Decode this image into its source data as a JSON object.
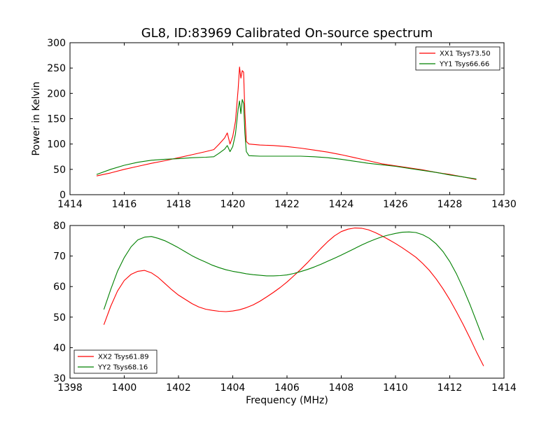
{
  "figure": {
    "title": "GL8, ID:83969 Calibrated On-source spectrum"
  },
  "chart_data": [
    {
      "type": "line",
      "title": "GL8, ID:83969 Calibrated On-source spectrum",
      "xlabel": "",
      "ylabel": "Power in Kelvin",
      "xlim": [
        1414,
        1430
      ],
      "ylim": [
        0,
        300
      ],
      "xticks": [
        1414,
        1416,
        1418,
        1420,
        1422,
        1424,
        1426,
        1428,
        1430
      ],
      "yticks": [
        0,
        50,
        100,
        150,
        200,
        250,
        300
      ],
      "grid": false,
      "legend_position": "top-right",
      "series": [
        {
          "name": "XX1 Tsys73.50",
          "color": "#ff0000",
          "x": [
            1414.98,
            1415.5,
            1416.0,
            1416.5,
            1417.0,
            1417.5,
            1418.0,
            1418.5,
            1419.0,
            1419.3,
            1419.5,
            1419.7,
            1419.8,
            1419.9,
            1420.0,
            1420.1,
            1420.2,
            1420.25,
            1420.3,
            1420.35,
            1420.4,
            1420.45,
            1420.5,
            1420.6,
            1421.0,
            1421.5,
            1422.0,
            1422.5,
            1423.0,
            1423.5,
            1424.0,
            1424.5,
            1425.0,
            1425.5,
            1426.0,
            1426.5,
            1427.0,
            1427.5,
            1428.0,
            1428.5,
            1428.98
          ],
          "y": [
            37,
            43,
            50,
            56,
            62,
            67,
            73,
            79,
            85,
            89,
            100,
            112,
            122,
            100,
            115,
            145,
            210,
            252,
            230,
            245,
            242,
            160,
            105,
            100,
            98,
            97,
            95,
            92,
            88,
            84,
            79,
            73,
            67,
            61,
            57,
            53,
            49,
            44,
            40,
            35,
            30
          ]
        },
        {
          "name": "YY1 Tsys66.66",
          "color": "#008000",
          "x": [
            1414.98,
            1415.5,
            1416.0,
            1416.5,
            1417.0,
            1417.5,
            1418.0,
            1418.5,
            1419.0,
            1419.3,
            1419.5,
            1419.7,
            1419.8,
            1419.9,
            1420.0,
            1420.1,
            1420.2,
            1420.25,
            1420.3,
            1420.35,
            1420.4,
            1420.45,
            1420.5,
            1420.6,
            1421.0,
            1421.5,
            1422.0,
            1422.5,
            1423.0,
            1423.5,
            1424.0,
            1424.5,
            1425.0,
            1425.5,
            1426.0,
            1426.5,
            1427.0,
            1427.5,
            1428.0,
            1428.5,
            1428.98
          ],
          "y": [
            40,
            50,
            58,
            64,
            68,
            70,
            71,
            73,
            74,
            75,
            82,
            90,
            97,
            85,
            95,
            120,
            170,
            185,
            160,
            188,
            180,
            120,
            85,
            77,
            76,
            76,
            76,
            76,
            75,
            73,
            70,
            66,
            62,
            59,
            56,
            52,
            48,
            44,
            39,
            35,
            31
          ]
        }
      ]
    },
    {
      "type": "line",
      "title": "",
      "xlabel": "Frequency (MHz)",
      "ylabel": "",
      "xlim": [
        1398,
        1414
      ],
      "ylim": [
        30,
        80
      ],
      "xticks": [
        1398,
        1400,
        1402,
        1404,
        1406,
        1408,
        1410,
        1412,
        1414
      ],
      "yticks": [
        30,
        40,
        50,
        60,
        70,
        80
      ],
      "grid": false,
      "legend_position": "bottom-left",
      "series": [
        {
          "name": "XX2 Tsys61.89",
          "color": "#ff0000",
          "x": [
            1399.25,
            1399.5,
            1399.75,
            1400.0,
            1400.25,
            1400.5,
            1400.75,
            1401.0,
            1401.25,
            1401.5,
            1401.75,
            1402.0,
            1402.25,
            1402.5,
            1402.75,
            1403.0,
            1403.25,
            1403.5,
            1403.75,
            1404.0,
            1404.25,
            1404.5,
            1404.75,
            1405.0,
            1405.25,
            1405.5,
            1405.75,
            1406.0,
            1406.25,
            1406.5,
            1406.75,
            1407.0,
            1407.25,
            1407.5,
            1407.75,
            1408.0,
            1408.25,
            1408.5,
            1408.75,
            1409.0,
            1409.25,
            1409.5,
            1409.75,
            1410.0,
            1410.25,
            1410.5,
            1410.75,
            1411.0,
            1411.25,
            1411.5,
            1411.75,
            1412.0,
            1412.25,
            1412.5,
            1412.75,
            1413.0,
            1413.25
          ],
          "y": [
            47.5,
            53.5,
            58.5,
            62,
            64,
            65,
            65.3,
            64.5,
            63,
            61,
            59,
            57.2,
            55.8,
            54.4,
            53.3,
            52.6,
            52.2,
            51.9,
            51.8,
            52,
            52.4,
            53.1,
            54,
            55.2,
            56.6,
            58.1,
            59.7,
            61.5,
            63.5,
            65.6,
            67.8,
            70.2,
            72.5,
            74.7,
            76.6,
            78,
            78.8,
            79.2,
            79.1,
            78.6,
            77.7,
            76.6,
            75.4,
            74.1,
            72.7,
            71.2,
            69.6,
            67.6,
            65.3,
            62.5,
            59.3,
            55.7,
            51.7,
            47.5,
            43,
            38.3,
            34
          ]
        },
        {
          "name": "YY2 Tsys68.16",
          "color": "#008000",
          "x": [
            1399.25,
            1399.5,
            1399.75,
            1400.0,
            1400.25,
            1400.5,
            1400.75,
            1401.0,
            1401.25,
            1401.5,
            1401.75,
            1402.0,
            1402.25,
            1402.5,
            1402.75,
            1403.0,
            1403.25,
            1403.5,
            1403.75,
            1404.0,
            1404.25,
            1404.5,
            1404.75,
            1405.0,
            1405.25,
            1405.5,
            1405.75,
            1406.0,
            1406.25,
            1406.5,
            1406.75,
            1407.0,
            1407.25,
            1407.5,
            1407.75,
            1408.0,
            1408.25,
            1408.5,
            1408.75,
            1409.0,
            1409.25,
            1409.5,
            1409.75,
            1410.0,
            1410.25,
            1410.5,
            1410.75,
            1411.0,
            1411.25,
            1411.5,
            1411.75,
            1412.0,
            1412.25,
            1412.5,
            1412.75,
            1413.0,
            1413.25
          ],
          "y": [
            52.5,
            59,
            65,
            69.5,
            73,
            75.3,
            76.2,
            76.4,
            75.8,
            75,
            73.9,
            72.7,
            71.4,
            70.1,
            69,
            68,
            67,
            66.2,
            65.5,
            65,
            64.6,
            64.2,
            63.9,
            63.7,
            63.5,
            63.5,
            63.6,
            63.8,
            64.3,
            64.9,
            65.6,
            66.4,
            67.3,
            68.3,
            69.3,
            70.3,
            71.4,
            72.5,
            73.6,
            74.6,
            75.5,
            76.3,
            76.9,
            77.4,
            77.8,
            77.9,
            77.7,
            77,
            75.8,
            74,
            71.5,
            68.2,
            64.1,
            59.3,
            54,
            48.2,
            42.5
          ]
        }
      ]
    }
  ]
}
